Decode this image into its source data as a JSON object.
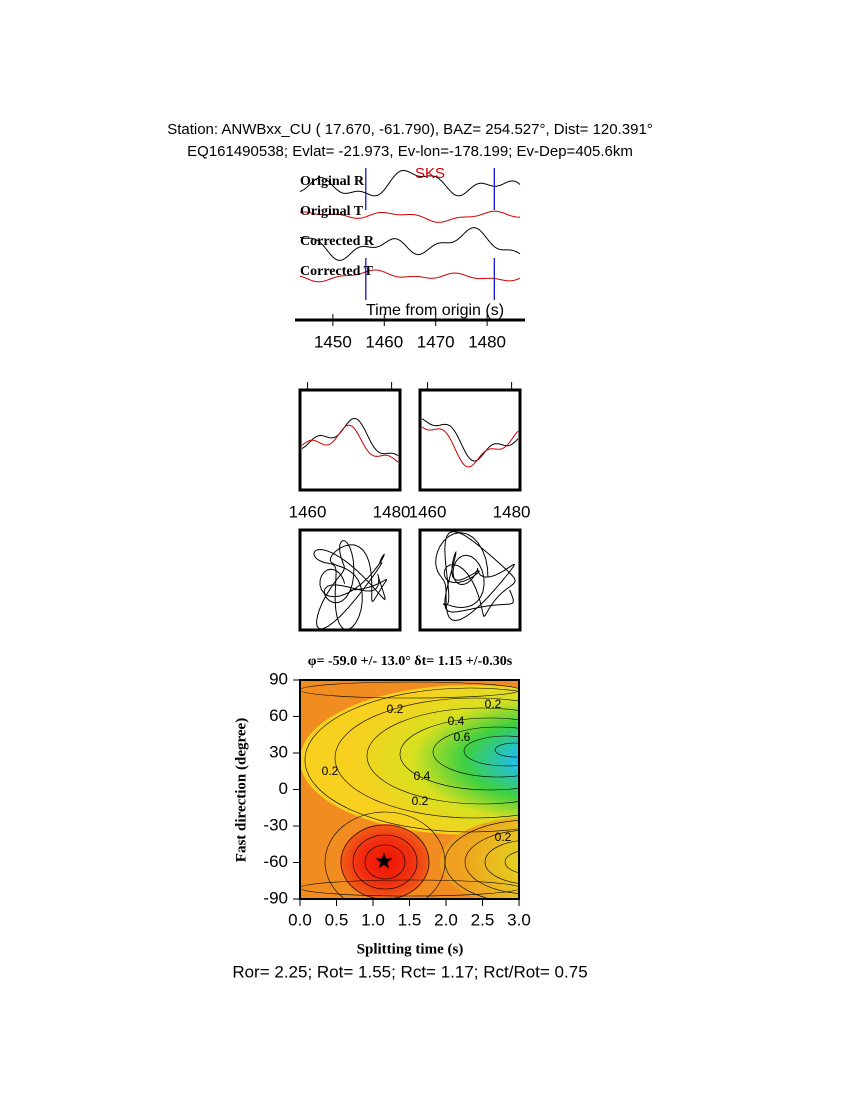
{
  "header": {
    "line1": "Station: ANWBxx_CU (  17.670,  -61.790), BAZ=  254.527°, Dist=  120.391°",
    "line2": "EQ161490538; Evlat= -21.973, Ev-lon=-178.199; Ev-Dep=405.6km"
  },
  "traces": {
    "labels": [
      "Original R",
      "Original T",
      "Corrected R",
      "Corrected T"
    ],
    "phase": "SKS",
    "xlabel": "Time from origin (s)",
    "xlim": [
      1443.6,
      1486.4
    ],
    "xticks": [
      1450,
      1460,
      1470,
      1480
    ],
    "window": [
      1456.4,
      1481.4
    ]
  },
  "panels": {
    "xlim": [
      1458.2,
      1482
    ],
    "xticks": [
      1460,
      1480
    ]
  },
  "grid_search": {
    "title": "φ= -59.0 +/- 13.0° δt= 1.15 +/-0.30s",
    "xlabel": "Splitting time (s)",
    "ylabel": "Fast direction (degree)",
    "xlim": [
      0,
      3
    ],
    "ylim": [
      -90,
      90
    ],
    "xticks": [
      {
        "value": 0,
        "label": "0.0"
      },
      0.5,
      {
        "value": 1,
        "label": "1.0"
      },
      1.5,
      {
        "value": 2,
        "label": "2.0"
      },
      2.5,
      {
        "value": 3,
        "label": "3.0"
      }
    ],
    "yticks": [
      -90,
      -60,
      -30,
      0,
      30,
      60,
      90
    ],
    "best": [
      1.15,
      -59
    ],
    "contour_labels": [
      "0.2",
      "0.2",
      "0.2",
      "0.4",
      "0.6",
      "0.4",
      "0.2",
      "0.2"
    ]
  },
  "footer": "Ror= 2.25; Rot= 1.55; Rct= 1.17; Rct/Rot= 0.75"
}
